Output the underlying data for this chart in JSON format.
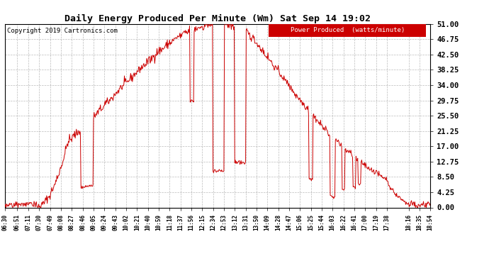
{
  "title": "Daily Energy Produced Per Minute (Wm) Sat Sep 14 19:02",
  "copyright": "Copyright 2019 Cartronics.com",
  "legend_label": "Power Produced  (watts/minute)",
  "legend_bg": "#cc0000",
  "legend_fg": "#ffffff",
  "line_color": "#cc0000",
  "background_color": "#ffffff",
  "grid_color": "#aaaaaa",
  "yticks": [
    0.0,
    4.25,
    8.5,
    12.75,
    17.0,
    21.25,
    25.5,
    29.75,
    34.0,
    38.25,
    42.5,
    46.75,
    51.0
  ],
  "ylim": [
    0,
    51
  ],
  "xtick_labels": [
    "06:30",
    "06:51",
    "07:11",
    "07:30",
    "07:49",
    "08:08",
    "08:27",
    "08:46",
    "09:05",
    "09:24",
    "09:43",
    "10:02",
    "10:21",
    "10:40",
    "10:59",
    "11:18",
    "11:37",
    "11:56",
    "12:15",
    "12:34",
    "12:53",
    "13:12",
    "13:31",
    "13:50",
    "14:09",
    "14:28",
    "14:47",
    "15:06",
    "15:25",
    "15:44",
    "16:03",
    "16:22",
    "16:41",
    "17:00",
    "17:19",
    "17:38",
    "18:16",
    "18:35",
    "18:54"
  ],
  "figsize": [
    6.9,
    3.75
  ],
  "dpi": 100
}
